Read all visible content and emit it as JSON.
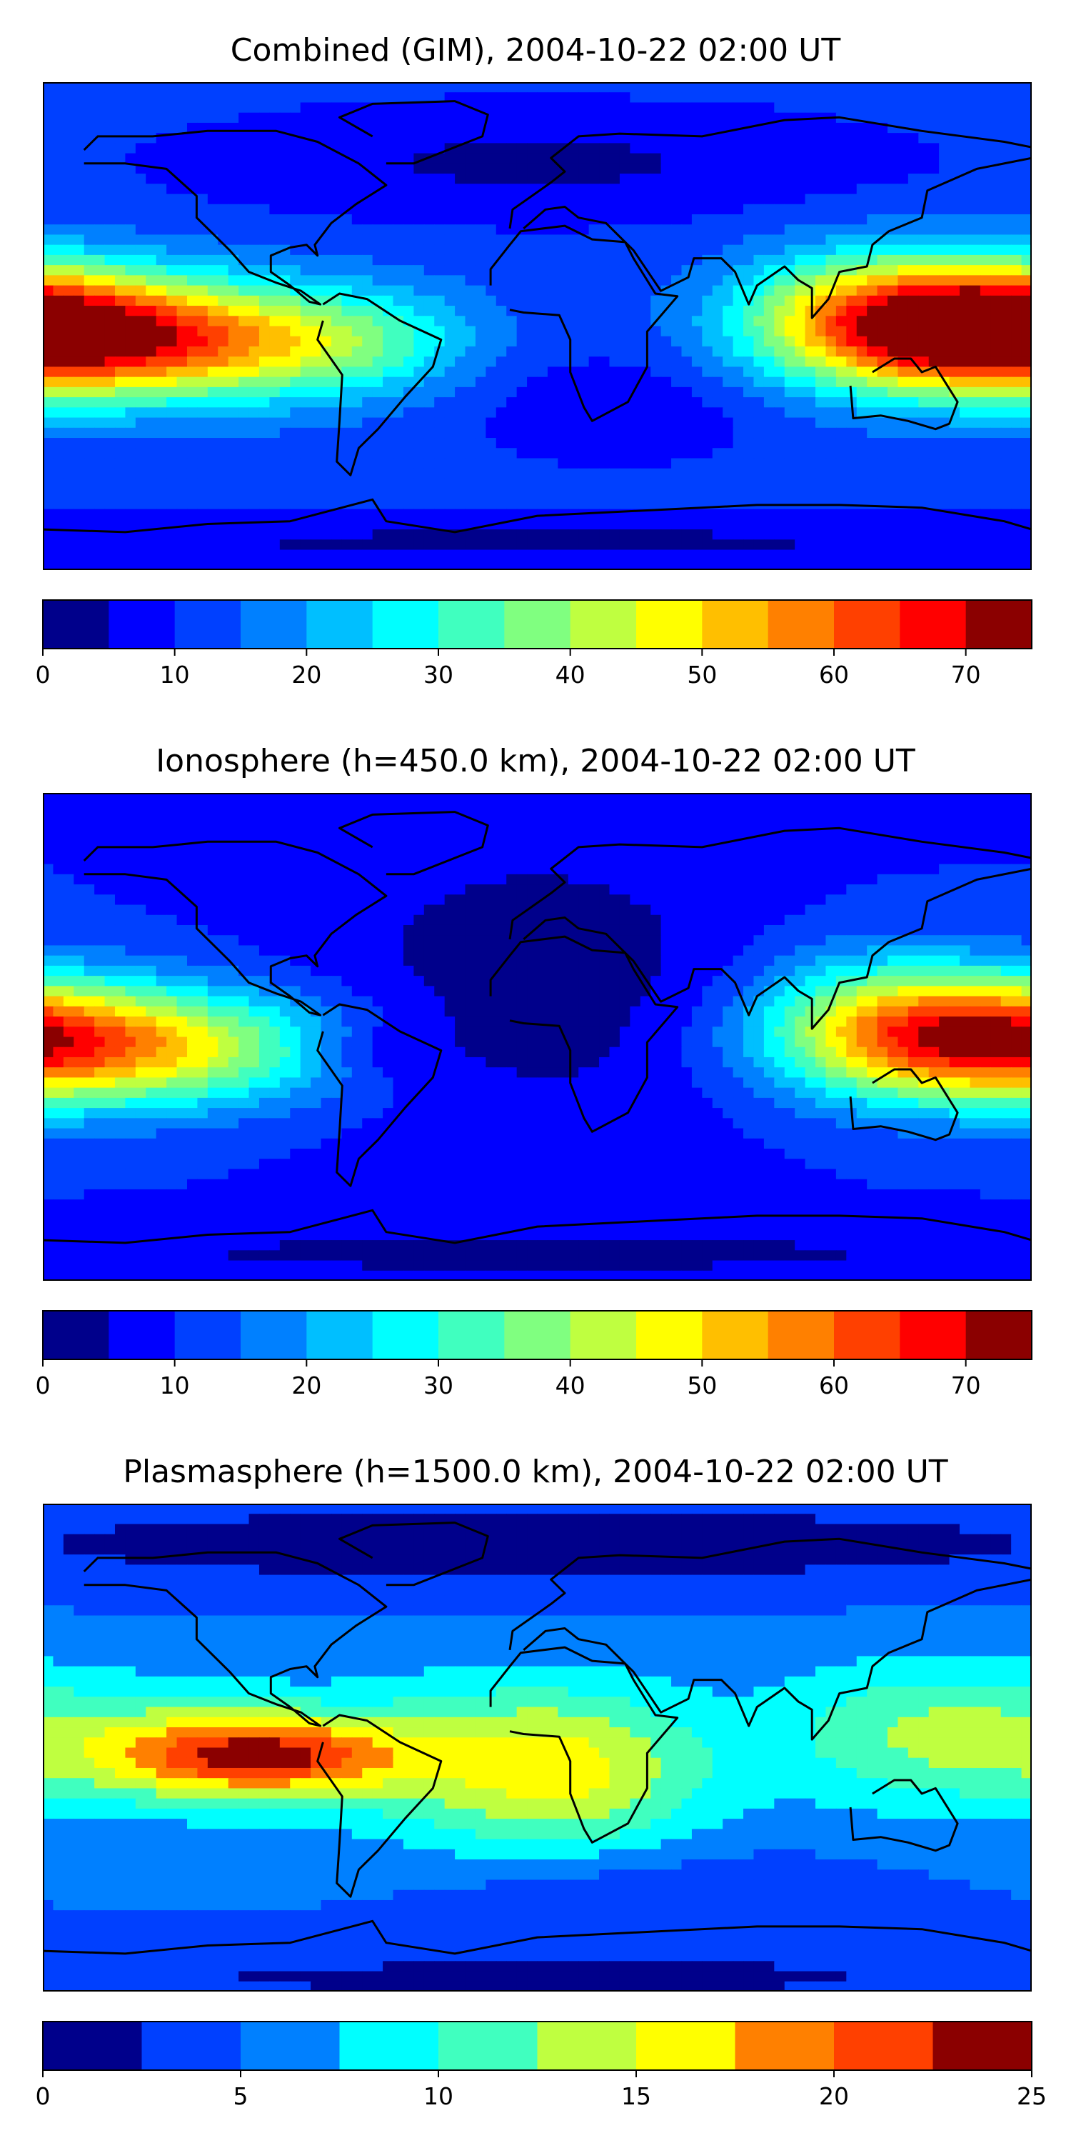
{
  "colors": {
    "jet_ramp": [
      "#00008b",
      "#0000ff",
      "#0040ff",
      "#0080ff",
      "#00bfff",
      "#00ffff",
      "#40ffbf",
      "#80ff80",
      "#bfff40",
      "#ffff00",
      "#ffbf00",
      "#ff8000",
      "#ff4000",
      "#ff0000",
      "#8b0000"
    ],
    "coast": "#000000",
    "frame": "#000000"
  },
  "chart_data": [
    {
      "type": "heatmap",
      "title": "Combined (GIM), 2004-10-22 02:00 UT",
      "colorbar": {
        "min": 0,
        "max": 75,
        "levels": 15,
        "ticks": [
          0,
          10,
          20,
          30,
          40,
          50,
          60,
          70
        ],
        "tick_labels": [
          "0",
          "10",
          "20",
          "30",
          "40",
          "50",
          "60",
          "70"
        ]
      },
      "field": {
        "base": 12,
        "blobs": [
          {
            "lon": -175,
            "lat": -3,
            "amp": 52,
            "slon": 55,
            "slat": 16
          },
          {
            "lon": -110,
            "lat": -8,
            "amp": 18,
            "slon": 40,
            "slat": 14
          },
          {
            "lon": -60,
            "lat": -5,
            "amp": 12,
            "slon": 30,
            "slat": 14
          },
          {
            "lon": 150,
            "lat": 2,
            "amp": 35,
            "slon": 40,
            "slat": 16
          },
          {
            "lon": 110,
            "lat": 5,
            "amp": 12,
            "slon": 30,
            "slat": 18
          },
          {
            "lon": 0,
            "lat": 60,
            "amp": -8,
            "slon": 90,
            "slat": 15
          },
          {
            "lon": 30,
            "lat": -30,
            "amp": -6,
            "slon": 40,
            "slat": 15
          },
          {
            "lon": 0,
            "lat": -80,
            "amp": -8,
            "slon": 180,
            "slat": 8
          }
        ]
      }
    },
    {
      "type": "heatmap",
      "title": "Ionosphere  (h=450.0 km), 2004-10-22 02:00 UT",
      "colorbar": {
        "min": 0,
        "max": 75,
        "levels": 15,
        "ticks": [
          0,
          10,
          20,
          30,
          40,
          50,
          60,
          70
        ],
        "tick_labels": [
          "0",
          "10",
          "20",
          "30",
          "40",
          "50",
          "60",
          "70"
        ]
      },
      "field": {
        "base": 10,
        "blobs": [
          {
            "lon": -175,
            "lat": -3,
            "amp": 40,
            "slon": 55,
            "slat": 16
          },
          {
            "lon": -110,
            "lat": -5,
            "amp": 12,
            "slon": 40,
            "slat": 14
          },
          {
            "lon": -60,
            "lat": -5,
            "amp": -6,
            "slon": 20,
            "slat": 8
          },
          {
            "lon": 150,
            "lat": 2,
            "amp": 28,
            "slon": 40,
            "slat": 16
          },
          {
            "lon": 115,
            "lat": 10,
            "amp": 10,
            "slon": 30,
            "slat": 20
          },
          {
            "lon": 0,
            "lat": 20,
            "amp": -8,
            "slon": 60,
            "slat": 40
          },
          {
            "lon": 0,
            "lat": -80,
            "amp": -6,
            "slon": 180,
            "slat": 8
          }
        ]
      }
    },
    {
      "type": "heatmap",
      "title": "Plasmasphere (h=1500.0 km), 2004-10-22 02:00 UT",
      "colorbar": {
        "min": 0,
        "max": 25,
        "levels": 10,
        "ticks": [
          0,
          5,
          10,
          15,
          20,
          25
        ],
        "tick_labels": [
          "0",
          "5",
          "10",
          "15",
          "20",
          "25"
        ]
      },
      "field": {
        "base": 5,
        "blobs": [
          {
            "lon": -100,
            "lat": -3,
            "amp": 14,
            "slon": 35,
            "slat": 10
          },
          {
            "lon": -140,
            "lat": 0,
            "amp": 6,
            "slon": 45,
            "slat": 18
          },
          {
            "lon": -20,
            "lat": -5,
            "amp": 7,
            "slon": 45,
            "slat": 22
          },
          {
            "lon": 20,
            "lat": -10,
            "amp": 6,
            "slon": 35,
            "slat": 22
          },
          {
            "lon": 140,
            "lat": 5,
            "amp": 7,
            "slon": 40,
            "slat": 20
          },
          {
            "lon": 0,
            "lat": 75,
            "amp": -4,
            "slon": 180,
            "slat": 12
          },
          {
            "lon": 40,
            "lat": -55,
            "amp": -3,
            "slon": 50,
            "slat": 12
          },
          {
            "lon": 0,
            "lat": -85,
            "amp": -3,
            "slon": 180,
            "slat": 8
          }
        ]
      }
    }
  ]
}
